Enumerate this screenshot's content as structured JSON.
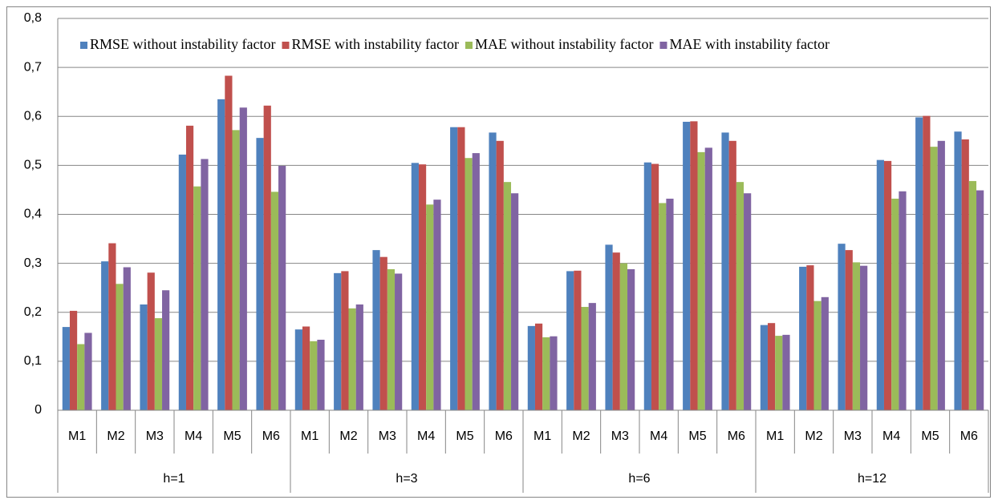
{
  "chart_data": {
    "type": "bar",
    "categories": [
      "M1",
      "M2",
      "M3",
      "M4",
      "M5",
      "M6",
      "M1",
      "M2",
      "M3",
      "M4",
      "M5",
      "M6",
      "M1",
      "M2",
      "M3",
      "M4",
      "M5",
      "M6",
      "M1",
      "M2",
      "M3",
      "M4",
      "M5",
      "M6"
    ],
    "category_groups": [
      "h=1",
      "h=3",
      "h=6",
      "h=12"
    ],
    "series": [
      {
        "name": "RMSE without instability factor",
        "color": "#4f81bd",
        "values": [
          0.17,
          0.304,
          0.216,
          0.522,
          0.635,
          0.556,
          0.165,
          0.28,
          0.327,
          0.505,
          0.578,
          0.567,
          0.172,
          0.284,
          0.338,
          0.506,
          0.589,
          0.567,
          0.174,
          0.293,
          0.34,
          0.511,
          0.598,
          0.569
        ]
      },
      {
        "name": "RMSE with instability factor",
        "color": "#c0504d",
        "values": [
          0.203,
          0.341,
          0.281,
          0.581,
          0.683,
          0.622,
          0.171,
          0.284,
          0.313,
          0.502,
          0.578,
          0.55,
          0.177,
          0.285,
          0.322,
          0.503,
          0.59,
          0.55,
          0.178,
          0.296,
          0.327,
          0.509,
          0.601,
          0.553
        ]
      },
      {
        "name": "MAE without instability factor",
        "color": "#9bbb59",
        "values": [
          0.135,
          0.258,
          0.188,
          0.457,
          0.572,
          0.446,
          0.141,
          0.208,
          0.288,
          0.42,
          0.515,
          0.466,
          0.149,
          0.211,
          0.3,
          0.423,
          0.527,
          0.466,
          0.152,
          0.223,
          0.302,
          0.432,
          0.538,
          0.468
        ]
      },
      {
        "name": "MAE with instability factor",
        "color": "#8064a2",
        "values": [
          0.158,
          0.292,
          0.245,
          0.513,
          0.618,
          0.499,
          0.144,
          0.216,
          0.279,
          0.43,
          0.525,
          0.443,
          0.151,
          0.219,
          0.288,
          0.432,
          0.536,
          0.443,
          0.154,
          0.231,
          0.295,
          0.447,
          0.55,
          0.449
        ]
      }
    ],
    "ylim": [
      0,
      0.8
    ],
    "yticks": [
      0,
      {
        "value": 0.1,
        "label": "0,1"
      },
      {
        "value": 0.2,
        "label": "0,2"
      },
      {
        "value": 0.3,
        "label": "0,3"
      },
      {
        "value": 0.4,
        "label": "0,4"
      },
      {
        "value": 0.5,
        "label": "0,5"
      },
      {
        "value": 0.6,
        "label": "0,6"
      },
      {
        "value": 0.7,
        "label": "0,7"
      },
      {
        "value": 0.8,
        "label": "0,8"
      }
    ],
    "grid": true,
    "legend": "top"
  }
}
